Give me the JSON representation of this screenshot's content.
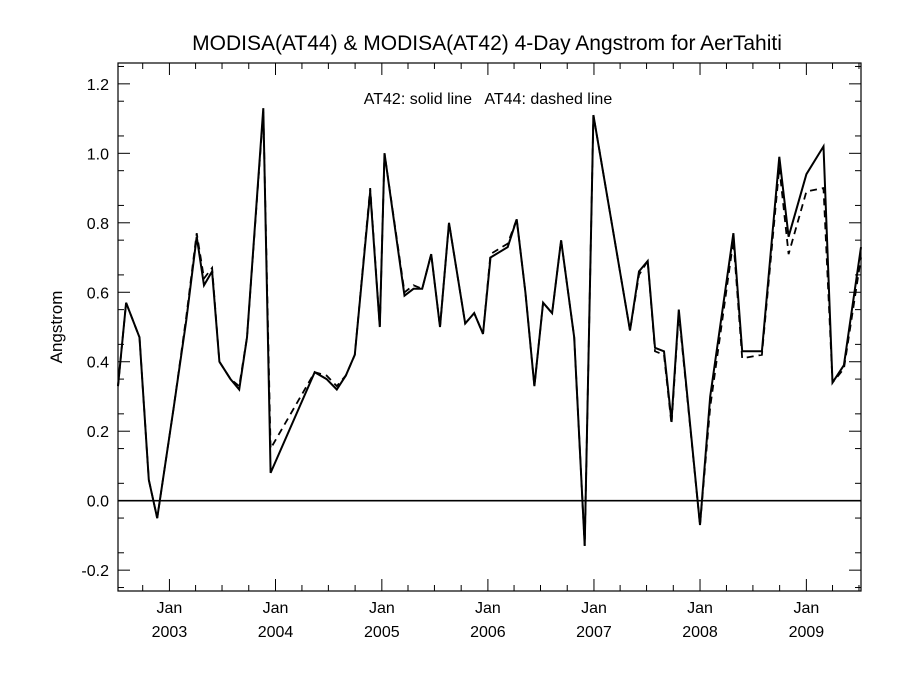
{
  "chart_data": {
    "type": "line",
    "title": "MODISA(AT44) & MODISA(AT42) 4-Day Angstrom for AerTahiti",
    "annotation": "AT42: solid line   AT44: dashed line",
    "ylabel": "Angstrom",
    "xlabel": "",
    "xlim": [
      "2002-07-08",
      "2009-07-08"
    ],
    "ylim": [
      -0.26,
      1.26
    ],
    "yticks": [
      -0.2,
      0.0,
      0.2,
      0.4,
      0.6,
      0.8,
      1.0,
      1.2
    ],
    "ytick_labels": [
      "-0.2",
      "0.0",
      "0.2",
      "0.4",
      "0.6",
      "0.8",
      "1.0",
      "1.2"
    ],
    "xticks": [
      {
        "date": "2003-01-01",
        "month": "Jan",
        "year": "2003"
      },
      {
        "date": "2004-01-01",
        "month": "Jan",
        "year": "2004"
      },
      {
        "date": "2005-01-01",
        "month": "Jan",
        "year": "2005"
      },
      {
        "date": "2006-01-01",
        "month": "Jan",
        "year": "2006"
      },
      {
        "date": "2007-01-01",
        "month": "Jan",
        "year": "2007"
      },
      {
        "date": "2008-01-01",
        "month": "Jan",
        "year": "2008"
      },
      {
        "date": "2009-01-01",
        "month": "Jan",
        "year": "2009"
      }
    ],
    "reference_line": 0.0,
    "grid": false,
    "series": [
      {
        "name": "AT42",
        "style": "solid",
        "color": "#000000",
        "points": [
          [
            "2002-07-08",
            0.33
          ],
          [
            "2002-08-05",
            0.57
          ],
          [
            "2002-09-20",
            0.47
          ],
          [
            "2002-10-22",
            0.06
          ],
          [
            "2002-11-20",
            -0.05
          ],
          [
            "2003-01-16",
            0.27
          ],
          [
            "2003-02-28",
            0.52
          ],
          [
            "2003-04-05",
            0.76
          ],
          [
            "2003-04-30",
            0.62
          ],
          [
            "2003-05-28",
            0.66
          ],
          [
            "2003-06-22",
            0.4
          ],
          [
            "2003-07-30",
            0.35
          ],
          [
            "2003-08-29",
            0.32
          ],
          [
            "2003-09-25",
            0.47
          ],
          [
            "2003-11-20",
            1.13
          ],
          [
            "2003-12-15",
            0.08
          ],
          [
            "2004-05-15",
            0.37
          ],
          [
            "2004-06-25",
            0.35
          ],
          [
            "2004-07-30",
            0.32
          ],
          [
            "2004-08-30",
            0.36
          ],
          [
            "2004-09-30",
            0.42
          ],
          [
            "2004-11-22",
            0.89
          ],
          [
            "2004-12-25",
            0.5
          ],
          [
            "2005-01-10",
            1.0
          ],
          [
            "2005-03-20",
            0.59
          ],
          [
            "2005-04-20",
            0.61
          ],
          [
            "2005-05-20",
            0.61
          ],
          [
            "2005-06-20",
            0.71
          ],
          [
            "2005-07-20",
            0.5
          ],
          [
            "2005-08-20",
            0.8
          ],
          [
            "2005-10-15",
            0.51
          ],
          [
            "2005-11-15",
            0.54
          ],
          [
            "2005-12-15",
            0.48
          ],
          [
            "2006-01-10",
            0.7
          ],
          [
            "2006-03-10",
            0.73
          ],
          [
            "2006-04-10",
            0.81
          ],
          [
            "2006-05-10",
            0.6
          ],
          [
            "2006-06-10",
            0.33
          ],
          [
            "2006-07-10",
            0.57
          ],
          [
            "2006-08-10",
            0.54
          ],
          [
            "2006-09-10",
            0.75
          ],
          [
            "2006-10-25",
            0.47
          ],
          [
            "2006-11-30",
            -0.13
          ],
          [
            "2006-12-30",
            1.11
          ],
          [
            "2007-05-05",
            0.49
          ],
          [
            "2007-06-05",
            0.66
          ],
          [
            "2007-07-05",
            0.69
          ],
          [
            "2007-07-30",
            0.44
          ],
          [
            "2007-08-30",
            0.43
          ],
          [
            "2007-09-25",
            0.23
          ],
          [
            "2007-10-20",
            0.55
          ],
          [
            "2008-01-01",
            -0.07
          ],
          [
            "2008-02-05",
            0.3
          ],
          [
            "2008-04-25",
            0.77
          ],
          [
            "2008-05-25",
            0.43
          ],
          [
            "2008-08-01",
            0.43
          ],
          [
            "2008-09-30",
            0.99
          ],
          [
            "2008-11-01",
            0.76
          ],
          [
            "2009-01-01",
            0.94
          ],
          [
            "2009-03-01",
            1.02
          ],
          [
            "2009-04-01",
            0.34
          ],
          [
            "2009-05-10",
            0.39
          ],
          [
            "2009-07-08",
            0.73
          ]
        ]
      },
      {
        "name": "AT44",
        "style": "dashed",
        "color": "#000000",
        "points": [
          [
            "2002-07-08",
            0.33
          ],
          [
            "2002-08-05",
            0.57
          ],
          [
            "2002-09-20",
            0.47
          ],
          [
            "2002-10-22",
            0.06
          ],
          [
            "2002-11-20",
            -0.05
          ],
          [
            "2003-01-16",
            0.27
          ],
          [
            "2003-02-28",
            0.53
          ],
          [
            "2003-04-05",
            0.77
          ],
          [
            "2003-04-30",
            0.64
          ],
          [
            "2003-05-28",
            0.67
          ],
          [
            "2003-06-22",
            0.4
          ],
          [
            "2003-07-30",
            0.35
          ],
          [
            "2003-08-29",
            0.33
          ],
          [
            "2003-09-25",
            0.47
          ],
          [
            "2003-11-20",
            1.12
          ],
          [
            "2003-12-15",
            0.15
          ],
          [
            "2004-05-15",
            0.37
          ],
          [
            "2004-06-25",
            0.36
          ],
          [
            "2004-07-30",
            0.33
          ],
          [
            "2004-08-30",
            0.36
          ],
          [
            "2004-09-30",
            0.42
          ],
          [
            "2004-11-22",
            0.9
          ],
          [
            "2004-12-25",
            0.5
          ],
          [
            "2005-01-10",
            1.0
          ],
          [
            "2005-03-20",
            0.6
          ],
          [
            "2005-04-20",
            0.62
          ],
          [
            "2005-05-20",
            0.61
          ],
          [
            "2005-06-20",
            0.71
          ],
          [
            "2005-07-20",
            0.5
          ],
          [
            "2005-08-20",
            0.8
          ],
          [
            "2005-10-15",
            0.51
          ],
          [
            "2005-11-15",
            0.54
          ],
          [
            "2005-12-15",
            0.48
          ],
          [
            "2006-01-10",
            0.71
          ],
          [
            "2006-03-10",
            0.74
          ],
          [
            "2006-04-10",
            0.81
          ],
          [
            "2006-05-10",
            0.6
          ],
          [
            "2006-06-10",
            0.33
          ],
          [
            "2006-07-10",
            0.57
          ],
          [
            "2006-08-10",
            0.54
          ],
          [
            "2006-09-10",
            0.75
          ],
          [
            "2006-10-25",
            0.47
          ],
          [
            "2006-11-30",
            -0.13
          ],
          [
            "2006-12-30",
            1.11
          ],
          [
            "2007-05-05",
            0.49
          ],
          [
            "2007-06-05",
            0.65
          ],
          [
            "2007-07-05",
            0.69
          ],
          [
            "2007-07-30",
            0.43
          ],
          [
            "2007-08-30",
            0.42
          ],
          [
            "2007-09-25",
            0.22
          ],
          [
            "2007-10-20",
            0.54
          ],
          [
            "2008-01-01",
            -0.07
          ],
          [
            "2008-02-05",
            0.27
          ],
          [
            "2008-04-25",
            0.75
          ],
          [
            "2008-05-25",
            0.41
          ],
          [
            "2008-08-01",
            0.42
          ],
          [
            "2008-09-30",
            0.96
          ],
          [
            "2008-11-01",
            0.71
          ],
          [
            "2009-01-01",
            0.89
          ],
          [
            "2009-03-01",
            0.9
          ],
          [
            "2009-04-01",
            0.34
          ],
          [
            "2009-05-10",
            0.38
          ],
          [
            "2009-07-08",
            0.7
          ]
        ]
      }
    ]
  }
}
